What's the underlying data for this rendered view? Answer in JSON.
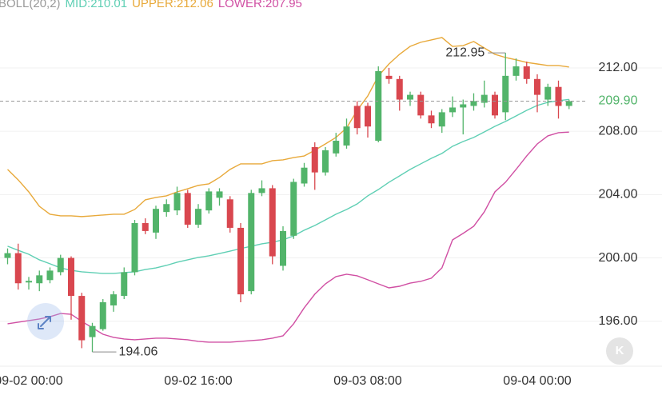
{
  "chart_data": {
    "type": "candlestick",
    "indicator": "BOLL(20,2)",
    "categories": [
      null,
      null,
      "09-02 00:00",
      null,
      null,
      null,
      null,
      null,
      null,
      null,
      null,
      null,
      null,
      null,
      null,
      null,
      null,
      null,
      "09-02 16:00",
      null,
      null,
      null,
      null,
      null,
      null,
      null,
      null,
      null,
      null,
      null,
      null,
      null,
      null,
      null,
      "09-03 08:00",
      null,
      null,
      null,
      null,
      null,
      null,
      null,
      null,
      null,
      null,
      null,
      null,
      null,
      null,
      null,
      "09-04 00:00",
      null,
      null,
      null
    ],
    "open": [
      200.0,
      200.3,
      198.45,
      198.4,
      198.6,
      199.1,
      200.0,
      197.6,
      195.0,
      195.5,
      197.0,
      197.6,
      199.1,
      202.2,
      201.6,
      202.9,
      203.0,
      204.1,
      202.1,
      203.0,
      203.8,
      203.7,
      201.9,
      197.9,
      204.1,
      204.4,
      199.5,
      201.4,
      204.7,
      207.0,
      205.4,
      206.6,
      207.1,
      209.6,
      209.6,
      207.4,
      211.5,
      211.3,
      210.0,
      210.3,
      209.0,
      208.3,
      209.2,
      209.5,
      209.6,
      209.8,
      210.3,
      209.2,
      211.5,
      212.1,
      211.3,
      210.0,
      210.8,
      209.6
    ],
    "high": [
      200.6,
      200.9,
      198.8,
      199.2,
      199.4,
      200.2,
      200.1,
      197.8,
      195.9,
      197.4,
      197.9,
      199.4,
      202.4,
      202.5,
      203.3,
      203.7,
      204.5,
      204.3,
      203.4,
      204.4,
      204.4,
      203.9,
      202.2,
      204.3,
      204.9,
      204.6,
      202.0,
      205.0,
      206.0,
      207.3,
      207.0,
      207.9,
      208.8,
      209.9,
      209.8,
      212.1,
      212.0,
      211.5,
      210.5,
      210.5,
      209.3,
      209.4,
      210.2,
      210.0,
      210.4,
      211.2,
      210.5,
      212.95,
      212.6,
      212.4,
      211.6,
      211.0,
      211.2,
      210.0
    ],
    "low": [
      199.6,
      198.0,
      198.0,
      197.9,
      198.4,
      198.9,
      196.1,
      194.3,
      194.06,
      195.4,
      196.6,
      197.4,
      198.9,
      201.5,
      201.2,
      202.6,
      202.7,
      201.9,
      201.9,
      202.8,
      203.3,
      201.6,
      197.2,
      197.7,
      203.9,
      199.6,
      199.2,
      201.2,
      204.5,
      204.3,
      205.2,
      206.4,
      206.9,
      207.8,
      207.6,
      207.3,
      211.0,
      209.3,
      209.6,
      208.8,
      208.2,
      207.9,
      208.9,
      207.8,
      209.3,
      209.5,
      208.8,
      208.7,
      211.2,
      211.0,
      209.2,
      209.6,
      208.8,
      209.4
    ],
    "close": [
      200.3,
      198.4,
      198.55,
      198.9,
      199.2,
      200.0,
      197.6,
      194.8,
      195.7,
      197.2,
      197.7,
      199.1,
      202.2,
      201.7,
      203.1,
      203.4,
      204.1,
      202.1,
      203.1,
      204.2,
      204.2,
      201.9,
      197.7,
      204.1,
      204.4,
      200.1,
      201.7,
      204.8,
      205.7,
      205.4,
      206.8,
      207.4,
      208.3,
      208.2,
      208.3,
      211.8,
      211.3,
      210.0,
      210.3,
      209.0,
      208.5,
      209.2,
      209.5,
      209.7,
      209.9,
      210.3,
      209.0,
      211.5,
      212.1,
      211.3,
      210.3,
      210.8,
      209.6,
      209.9
    ],
    "up_color": "#52b46a",
    "down_color": "#d9474f",
    "series": [
      {
        "name": "MID:210.01",
        "color": "#5fcfb4",
        "values": [
          200.74,
          200.48,
          200.23,
          199.88,
          199.63,
          199.37,
          199.22,
          199.12,
          199.07,
          199.02,
          199.02,
          199.07,
          199.12,
          199.27,
          199.37,
          199.53,
          199.73,
          199.88,
          200.03,
          200.13,
          200.28,
          200.43,
          200.59,
          200.74,
          200.89,
          200.99,
          201.14,
          201.39,
          201.75,
          202.05,
          202.4,
          202.76,
          203.06,
          203.41,
          203.92,
          204.32,
          204.78,
          205.18,
          205.59,
          205.94,
          206.29,
          206.6,
          207.05,
          207.35,
          207.61,
          207.96,
          208.31,
          208.62,
          208.97,
          209.32,
          209.63,
          209.83,
          209.93,
          210.01
        ]
      },
      {
        "name": "UPPER:212.06",
        "color": "#e8a93a",
        "values": [
          205.59,
          204.93,
          204.17,
          203.26,
          202.76,
          202.66,
          202.66,
          202.61,
          202.66,
          202.71,
          202.76,
          202.76,
          203.06,
          203.67,
          203.82,
          203.92,
          204.17,
          204.37,
          204.58,
          204.68,
          205.08,
          205.59,
          205.94,
          205.94,
          205.94,
          206.14,
          206.19,
          206.34,
          206.44,
          206.8,
          207.2,
          207.61,
          208.21,
          209.32,
          210.23,
          211.49,
          212.25,
          212.86,
          213.36,
          213.62,
          213.77,
          213.92,
          213.36,
          213.41,
          213.67,
          213.26,
          212.86,
          212.66,
          212.51,
          212.35,
          212.25,
          212.15,
          212.15,
          212.06
        ]
      },
      {
        "name": "LOWER:207.95",
        "color": "#d04fa3",
        "values": [
          195.84,
          195.94,
          196.04,
          196.14,
          196.29,
          196.49,
          196.44,
          195.99,
          195.59,
          195.18,
          194.98,
          194.88,
          194.83,
          194.88,
          194.93,
          194.93,
          194.88,
          194.83,
          194.73,
          194.68,
          194.68,
          194.68,
          194.73,
          194.78,
          194.83,
          194.93,
          195.08,
          195.84,
          196.85,
          197.71,
          198.36,
          198.82,
          198.97,
          198.87,
          198.62,
          198.36,
          198.11,
          198.21,
          198.41,
          198.52,
          198.72,
          199.37,
          201.14,
          201.55,
          202.0,
          202.91,
          204.17,
          204.78,
          205.59,
          206.44,
          207.2,
          207.71,
          207.91,
          207.95
        ]
      }
    ],
    "ylim": [
      193.16,
      216.29
    ],
    "yticks": [
      {
        "value": 196,
        "label": "196.00"
      },
      {
        "value": 200,
        "label": "200.00"
      },
      {
        "value": 204,
        "label": "204.00"
      },
      {
        "value": 208,
        "label": "208.00"
      },
      {
        "value": 212,
        "label": "212.00"
      }
    ],
    "grid": true,
    "last_price": {
      "value": 209.9,
      "label": "209.90"
    },
    "annotations": [
      {
        "value": 212.95,
        "label": "212.95",
        "kind": "high"
      },
      {
        "value": 194.06,
        "label": "194.06",
        "kind": "low"
      }
    ]
  }
}
